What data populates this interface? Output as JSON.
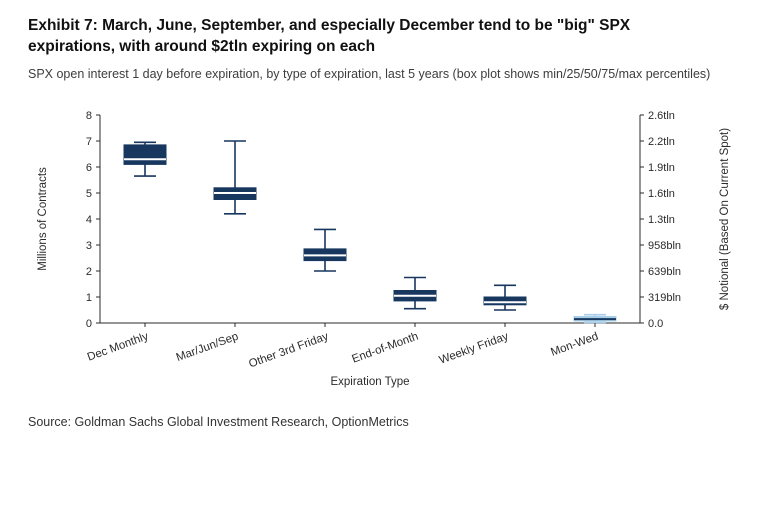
{
  "header": {
    "title": "Exhibit 7: March, June, September, and especially December tend to be \"big\" SPX expirations, with around $2tln expiring on each",
    "subtitle": "SPX open interest 1 day before expiration, by type of expiration, last 5 years (box plot shows min/25/50/75/max percentiles)"
  },
  "footer": {
    "source": "Source: Goldman Sachs Global Investment Research, OptionMetrics"
  },
  "chart_data": {
    "type": "boxplot",
    "title": "SPX open interest 1 day before expiration, by type of expiration, last 5 years",
    "xlabel": "Expiration Type",
    "ylabel_left": "Millions of Contracts",
    "ylabel_right": "$ Notional (Based On Current Spot)",
    "ylim": [
      0,
      8
    ],
    "grid": false,
    "legend": "none",
    "left_ticks": [
      0,
      1,
      2,
      3,
      4,
      5,
      6,
      7,
      8
    ],
    "right_tick_labels": [
      "0.0",
      "319bln",
      "639bln",
      "958bln",
      "1.3tln",
      "1.6tln",
      "1.9tln",
      "2.2tln",
      "2.6tln"
    ],
    "categories": [
      "Dec Monthly",
      "Mar/Jun/Sep",
      "Other 3rd Friday",
      "End-of-Month",
      "Weekly Friday",
      "Mon-Wed"
    ],
    "series": [
      {
        "name": "Dec Monthly",
        "min": 5.65,
        "q1": 6.1,
        "median": 6.3,
        "q3": 6.85,
        "max": 6.95,
        "color": "#17375e",
        "median_color": "#ffffff"
      },
      {
        "name": "Mar/Jun/Sep",
        "min": 4.2,
        "q1": 4.75,
        "median": 5.0,
        "q3": 5.2,
        "max": 7.0,
        "color": "#17375e",
        "median_color": "#ffffff"
      },
      {
        "name": "Other 3rd Friday",
        "min": 2.0,
        "q1": 2.4,
        "median": 2.6,
        "q3": 2.85,
        "max": 3.6,
        "color": "#17375e",
        "median_color": "#ffffff"
      },
      {
        "name": "End-of-Month",
        "min": 0.55,
        "q1": 0.85,
        "median": 1.05,
        "q3": 1.25,
        "max": 1.75,
        "color": "#17375e",
        "median_color": "#ffffff"
      },
      {
        "name": "Weekly Friday",
        "min": 0.5,
        "q1": 0.7,
        "median": 0.8,
        "q3": 1.0,
        "max": 1.45,
        "color": "#17375e",
        "median_color": "#ffffff"
      },
      {
        "name": "Mon-Wed",
        "min": 0.02,
        "q1": 0.08,
        "median": 0.15,
        "q3": 0.25,
        "max": 0.32,
        "color": "#a8cde8",
        "median_color": "#17375e"
      }
    ]
  }
}
